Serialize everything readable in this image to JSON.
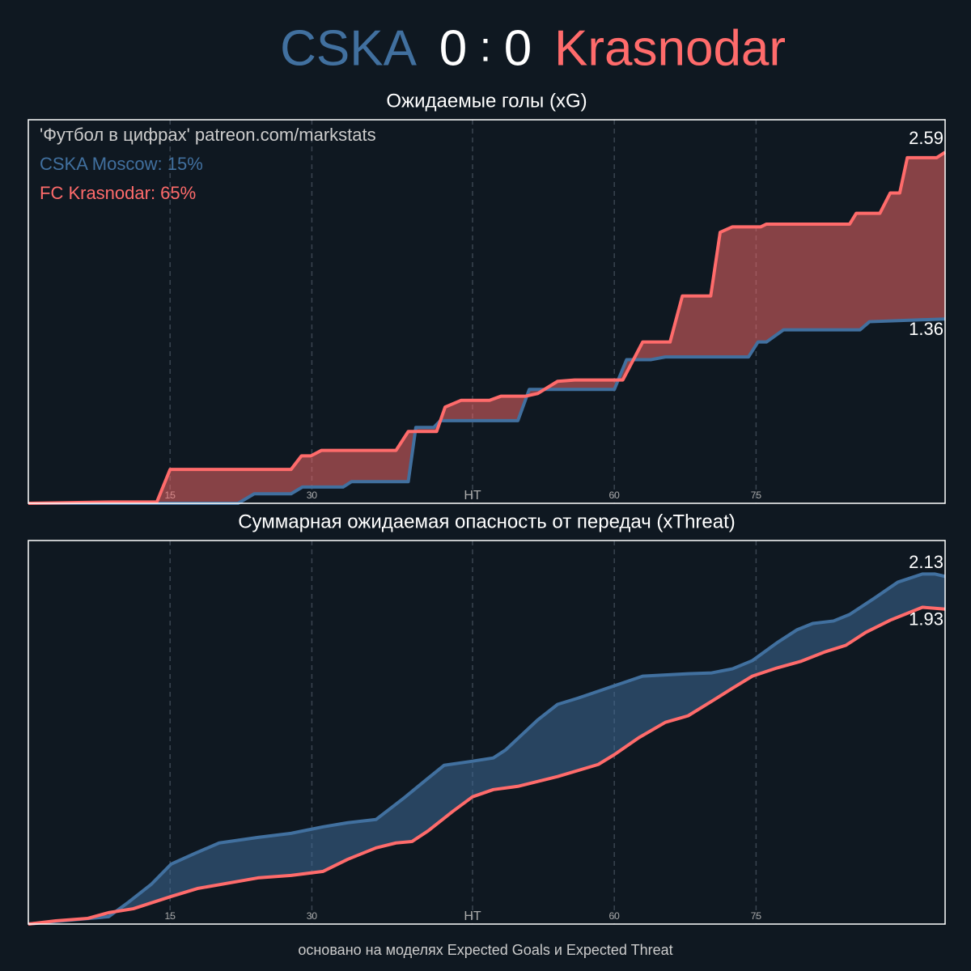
{
  "header": {
    "home": "CSKA",
    "home_score": 0,
    "separator": ":",
    "away_score": 0,
    "away": "Krasnodar"
  },
  "chart_data": [
    {
      "type": "line",
      "title": "Ожидаемые голы (xG)",
      "annotation": "'Футбол в цифрах' patreon.com/markstats",
      "legend": "upper left",
      "fill_between": true,
      "grid": true,
      "xlim": [
        0,
        97
      ],
      "ylim": [
        0,
        2.83
      ],
      "xticks": [
        15,
        30,
        {
          "value": 47,
          "label": "HT"
        },
        {
          "value": 62,
          "label": "60"
        },
        {
          "value": 77,
          "label": "75"
        }
      ],
      "series": [
        {
          "name": "CSKA Moscow: 15%",
          "color": "#41709f",
          "x": [
            0,
            22.2,
            23.9,
            27.8,
            29.0,
            33.3,
            34.2,
            40.2,
            41.0,
            42.9,
            43.6,
            51.8,
            53.0,
            62.0,
            63.3,
            65.9,
            67.4,
            76.2,
            77.2,
            78.1,
            79.9,
            88.0,
            89.0,
            92.9,
            97
          ],
          "values": [
            0,
            0,
            0.07,
            0.07,
            0.12,
            0.12,
            0.16,
            0.16,
            0.56,
            0.56,
            0.61,
            0.61,
            0.84,
            0.84,
            1.06,
            1.06,
            1.08,
            1.08,
            1.19,
            1.19,
            1.28,
            1.28,
            1.34,
            1.35,
            1.36
          ]
        },
        {
          "name": "FC Krasnodar: 65%",
          "color": "#ff6b6b",
          "x": [
            0,
            8.9,
            13.6,
            15,
            27.8,
            28.9,
            29.9,
            31,
            38.9,
            40.2,
            43.2,
            44.1,
            45.8,
            48.8,
            50.0,
            52.6,
            53.9,
            56.0,
            57.8,
            62.9,
            65.0,
            67.9,
            69.2,
            72.2,
            73.2,
            74.5,
            77.5,
            78.1,
            86.9,
            87.6,
            90.1,
            91.2,
            92.2,
            93.0,
            96.1,
            97
          ],
          "values": [
            0,
            0.01,
            0.01,
            0.25,
            0.25,
            0.35,
            0.35,
            0.39,
            0.39,
            0.53,
            0.53,
            0.71,
            0.76,
            0.76,
            0.79,
            0.79,
            0.81,
            0.9,
            0.91,
            0.91,
            1.19,
            1.19,
            1.53,
            1.53,
            2.0,
            2.04,
            2.04,
            2.06,
            2.06,
            2.14,
            2.14,
            2.29,
            2.29,
            2.55,
            2.55,
            2.59
          ]
        }
      ]
    },
    {
      "type": "line",
      "title": "Суммарная ожидаемая опасность от передач (xThreat)",
      "fill_between": true,
      "grid": true,
      "xlim": [
        0,
        97
      ],
      "ylim": [
        0,
        2.35
      ],
      "xticks": [
        15,
        30,
        {
          "value": 47,
          "label": "HT"
        },
        {
          "value": 62,
          "label": "60"
        },
        {
          "value": 77,
          "label": "75"
        }
      ],
      "series": [
        {
          "color": "#41709f",
          "x": [
            0,
            5.5,
            8.5,
            10.6,
            13.0,
            15.1,
            17.5,
            20.2,
            24.3,
            27.8,
            31.2,
            33.8,
            36.8,
            39.8,
            42.2,
            44.0,
            47.0,
            49.2,
            50.5,
            53.9,
            56.0,
            58.2,
            62.0,
            65.0,
            69.8,
            72.3,
            74.5,
            76.6,
            79.2,
            81.3,
            83.0,
            85.2,
            86.9,
            89.5,
            92.0,
            94.6,
            95.9,
            97
          ],
          "values": [
            0,
            0.03,
            0.045,
            0.134,
            0.243,
            0.367,
            0.43,
            0.497,
            0.531,
            0.556,
            0.596,
            0.621,
            0.641,
            0.775,
            0.889,
            0.973,
            0.998,
            1.018,
            1.067,
            1.251,
            1.346,
            1.385,
            1.46,
            1.519,
            1.534,
            1.539,
            1.564,
            1.614,
            1.723,
            1.802,
            1.842,
            1.857,
            1.897,
            1.996,
            2.095,
            2.145,
            2.145,
            2.13
          ]
        },
        {
          "color": "#ff6b6b",
          "x": [
            0,
            2.9,
            6.3,
            8.5,
            11.1,
            15.1,
            17.9,
            24.3,
            27.8,
            31.2,
            33.8,
            36.8,
            38.9,
            40.6,
            42.3,
            44.9,
            47.0,
            49.2,
            51.8,
            56.0,
            60.3,
            62.0,
            64.6,
            67.4,
            69.8,
            72.3,
            74.5,
            76.6,
            79.2,
            81.7,
            84.3,
            86.5,
            88.6,
            91.2,
            94.6,
            97
          ],
          "values": [
            0,
            0.02,
            0.035,
            0.07,
            0.094,
            0.169,
            0.218,
            0.283,
            0.298,
            0.323,
            0.397,
            0.467,
            0.497,
            0.506,
            0.571,
            0.69,
            0.78,
            0.824,
            0.844,
            0.904,
            0.978,
            1.038,
            1.142,
            1.236,
            1.276,
            1.365,
            1.445,
            1.519,
            1.569,
            1.609,
            1.668,
            1.708,
            1.787,
            1.862,
            1.941,
            1.93
          ]
        }
      ]
    }
  ],
  "footer": "основано на моделях Expected Goals и Expected Threat"
}
